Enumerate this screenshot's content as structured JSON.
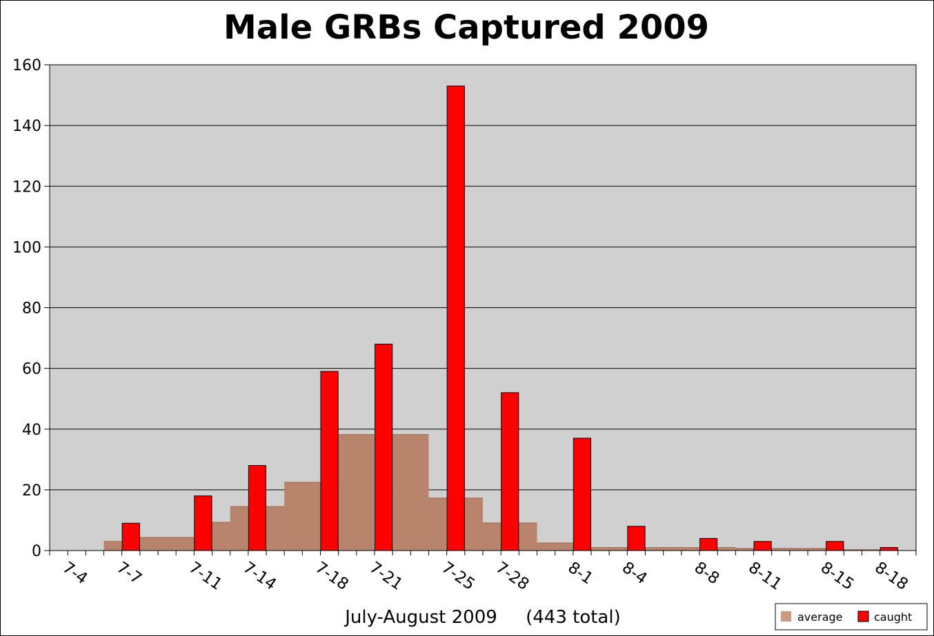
{
  "chart_data": {
    "type": "bar",
    "title": "Male GRBs Captured 2009",
    "xlabel": "July-August 2009     (443 total)",
    "ylabel": "",
    "ylim": [
      0,
      160
    ],
    "yticks": [
      0,
      20,
      40,
      60,
      80,
      100,
      120,
      140,
      160
    ],
    "grid": true,
    "legend_position": "bottom-right",
    "x_tick_labels": [
      "7-4",
      "7-7",
      "7-11",
      "7-14",
      "7-18",
      "7-21",
      "7-25",
      "7-28",
      "8-1",
      "8-4",
      "8-8",
      "8-11",
      "8-15",
      "8-18"
    ],
    "series": [
      {
        "name": "average",
        "color": "#b8846b",
        "legend_color": "#cc9a80",
        "style": "stepped-area",
        "bins": [
          {
            "from": "7-6",
            "to": "7-8",
            "value": 3
          },
          {
            "from": "7-8",
            "to": "7-11",
            "value": 4.3
          },
          {
            "from": "7-11",
            "to": "7-13",
            "value": 9.3
          },
          {
            "from": "7-13",
            "to": "7-16",
            "value": 14.5
          },
          {
            "from": "7-16",
            "to": "7-19",
            "value": 22.5
          },
          {
            "from": "7-19",
            "to": "7-22",
            "value": 38.2
          },
          {
            "from": "7-22",
            "to": "7-24",
            "value": 38.2
          },
          {
            "from": "7-24",
            "to": "7-27",
            "value": 17.3
          },
          {
            "from": "7-27",
            "to": "7-30",
            "value": 9.1
          },
          {
            "from": "7-30",
            "to": "8-2",
            "value": 2.5
          },
          {
            "from": "8-2",
            "to": "8-5",
            "value": 1
          },
          {
            "from": "8-5",
            "to": "8-7",
            "value": 1
          },
          {
            "from": "8-7",
            "to": "8-10",
            "value": 1
          },
          {
            "from": "8-10",
            "to": "8-13",
            "value": 0.7
          },
          {
            "from": "8-13",
            "to": "8-16",
            "value": 0.7
          },
          {
            "from": "8-16",
            "to": "8-18",
            "value": 0.3
          }
        ]
      },
      {
        "name": "caught",
        "color": "#ff0000",
        "points": [
          {
            "x": "7-7",
            "value": 9
          },
          {
            "x": "7-11",
            "value": 18
          },
          {
            "x": "7-14",
            "value": 28
          },
          {
            "x": "7-18",
            "value": 59
          },
          {
            "x": "7-21",
            "value": 68
          },
          {
            "x": "7-25",
            "value": 153
          },
          {
            "x": "7-28",
            "value": 52
          },
          {
            "x": "8-1",
            "value": 37
          },
          {
            "x": "8-4",
            "value": 8
          },
          {
            "x": "8-8",
            "value": 4
          },
          {
            "x": "8-11",
            "value": 3
          },
          {
            "x": "8-15",
            "value": 3
          },
          {
            "x": "8-18",
            "value": 1
          }
        ]
      }
    ],
    "colors": {
      "plot_background": "#d0d0d0",
      "gridline": "#000000",
      "bar_outline": "#000000"
    }
  }
}
